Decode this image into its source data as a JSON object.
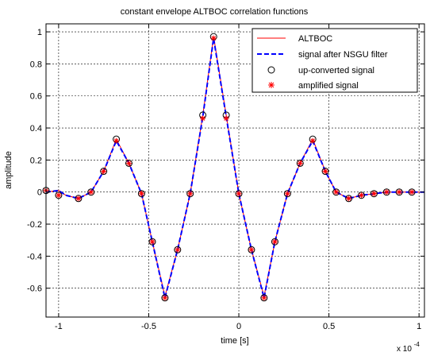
{
  "chart_data": {
    "type": "line",
    "title": "constant envelope ALTBOC correlation functions",
    "xlabel": "time [s]",
    "ylabel": "amplitude",
    "x_exponent_label": "x 10",
    "x_exponent": "-4",
    "xlim": [
      -1.07,
      1.03
    ],
    "ylim": [
      -0.78,
      1.05
    ],
    "x_ticks": [
      -1,
      -0.5,
      0,
      0.5,
      1
    ],
    "x_tick_labels": [
      "-1",
      "-0.5",
      "0",
      "0.5",
      "1"
    ],
    "y_ticks": [
      -0.6,
      -0.4,
      -0.2,
      0,
      0.2,
      0.4,
      0.6,
      0.8,
      1
    ],
    "y_tick_labels": [
      "-0.6",
      "-0.4",
      "-0.2",
      "0",
      "0.2",
      "0.4",
      "0.6",
      "0.8",
      "1"
    ],
    "grid": true,
    "legend_position": "top-right",
    "series": [
      {
        "name": "ALTBOC",
        "style": "solid-line",
        "color": "#ff0000",
        "x": [
          -1.07,
          -1.0,
          -0.96,
          -0.89,
          -0.82,
          -0.75,
          -0.68,
          -0.61,
          -0.54,
          -0.48,
          -0.41,
          -0.34,
          -0.27,
          -0.2,
          -0.14,
          -0.07,
          0.0,
          0.07,
          0.14,
          0.2,
          0.27,
          0.34,
          0.41,
          0.48,
          0.54,
          0.61,
          0.68,
          0.75,
          0.82,
          0.89,
          0.96,
          1.03
        ],
        "y": [
          0.0,
          0.01,
          -0.02,
          -0.04,
          0.0,
          0.13,
          0.33,
          0.18,
          -0.01,
          -0.31,
          -0.65,
          -0.36,
          -0.01,
          0.48,
          0.97,
          0.48,
          -0.01,
          -0.36,
          -0.65,
          -0.31,
          -0.01,
          0.18,
          0.33,
          0.13,
          0.0,
          -0.04,
          -0.02,
          -0.01,
          0.0,
          0.0,
          0.0,
          0.0
        ]
      },
      {
        "name": "signal after NSGU filter",
        "style": "dashed-line",
        "color": "#0000ff",
        "x": [
          -1.07,
          -1.0,
          -0.96,
          -0.89,
          -0.82,
          -0.75,
          -0.68,
          -0.61,
          -0.54,
          -0.48,
          -0.41,
          -0.34,
          -0.27,
          -0.2,
          -0.14,
          -0.07,
          0.0,
          0.07,
          0.14,
          0.2,
          0.27,
          0.34,
          0.41,
          0.48,
          0.54,
          0.61,
          0.68,
          0.75,
          0.82,
          0.89,
          0.96,
          1.03
        ],
        "y": [
          0.0,
          0.01,
          -0.02,
          -0.04,
          0.0,
          0.13,
          0.32,
          0.18,
          -0.01,
          -0.31,
          -0.66,
          -0.36,
          -0.01,
          0.47,
          0.96,
          0.47,
          -0.01,
          -0.36,
          -0.66,
          -0.31,
          -0.01,
          0.18,
          0.32,
          0.13,
          0.0,
          -0.04,
          -0.02,
          -0.01,
          0.0,
          0.0,
          0.0,
          0.0
        ]
      },
      {
        "name": "up-converted signal",
        "style": "circle-markers",
        "color": "#000000",
        "x": [
          -1.07,
          -1.0,
          -0.89,
          -0.82,
          -0.75,
          -0.68,
          -0.61,
          -0.54,
          -0.48,
          -0.41,
          -0.34,
          -0.27,
          -0.2,
          -0.14,
          -0.07,
          0.0,
          0.07,
          0.14,
          0.2,
          0.27,
          0.34,
          0.41,
          0.48,
          0.54,
          0.61,
          0.68,
          0.75,
          0.82,
          0.89,
          0.96
        ],
        "y": [
          0.01,
          -0.02,
          -0.04,
          0.0,
          0.13,
          0.33,
          0.18,
          -0.01,
          -0.31,
          -0.66,
          -0.36,
          -0.01,
          0.48,
          0.97,
          0.48,
          -0.01,
          -0.36,
          -0.66,
          -0.31,
          -0.01,
          0.18,
          0.33,
          0.13,
          0.0,
          -0.04,
          -0.02,
          -0.01,
          0.0,
          0.0,
          0.0
        ]
      },
      {
        "name": "amplified signal",
        "style": "star-markers",
        "color": "#ff0000",
        "x": [
          -1.07,
          -1.0,
          -0.89,
          -0.82,
          -0.75,
          -0.68,
          -0.61,
          -0.54,
          -0.48,
          -0.41,
          -0.34,
          -0.27,
          -0.2,
          -0.14,
          -0.07,
          0.0,
          0.07,
          0.14,
          0.2,
          0.27,
          0.34,
          0.41,
          0.48,
          0.54,
          0.61,
          0.68,
          0.75,
          0.82,
          0.89,
          0.96
        ],
        "y": [
          0.01,
          -0.02,
          -0.04,
          0.0,
          0.13,
          0.32,
          0.18,
          -0.01,
          -0.31,
          -0.66,
          -0.36,
          -0.01,
          0.46,
          0.96,
          0.46,
          -0.01,
          -0.36,
          -0.66,
          -0.31,
          -0.01,
          0.18,
          0.32,
          0.13,
          0.0,
          -0.04,
          -0.02,
          -0.01,
          0.0,
          0.0,
          0.0
        ]
      }
    ]
  }
}
